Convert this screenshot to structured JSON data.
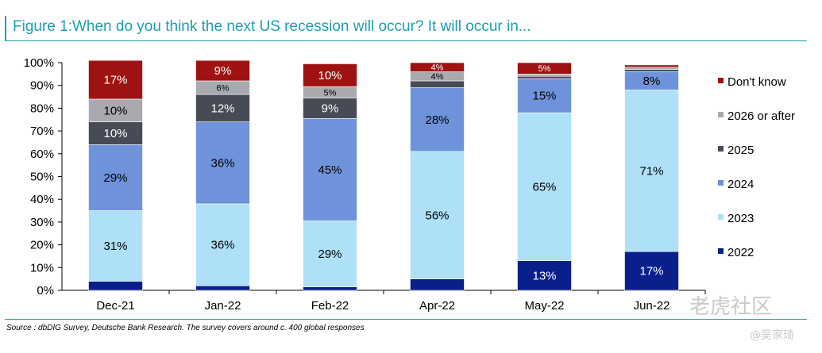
{
  "figure_title": "Figure 1:When do you think the next US recession will occur? It will occur in...",
  "source_note": "Source : dbDIG Survey, Deutsche Bank Research. The survey covers around c. 400 global responses",
  "watermark": {
    "main": "老虎社区",
    "sub": "@吴家琦"
  },
  "colors": {
    "2022": "#0a1e8c",
    "2023": "#aee0f7",
    "2024": "#6f93db",
    "2025": "#474b56",
    "2026 or after": "#a8aab0",
    "Don't know": "#9e1212",
    "accent": "#1a9fb0"
  },
  "chart_data": {
    "type": "bar",
    "stacked": true,
    "categories": [
      "Dec-21",
      "Jan-22",
      "Feb-22",
      "Apr-22",
      "May-22",
      "Jun-22"
    ],
    "y_tick_labels": [
      "0%",
      "10%",
      "20%",
      "30%",
      "40%",
      "50%",
      "60%",
      "70%",
      "80%",
      "90%",
      "100%"
    ],
    "ylim": [
      0,
      100
    ],
    "legend_position": "right",
    "series": [
      {
        "name": "2022",
        "values": [
          4,
          2,
          1.5,
          5,
          13,
          17
        ],
        "labels": [
          "",
          "",
          "",
          "",
          "13%",
          "17%"
        ]
      },
      {
        "name": "2023",
        "values": [
          31,
          36,
          29,
          56,
          65,
          71
        ],
        "labels": [
          "31%",
          "36%",
          "29%",
          "56%",
          "65%",
          "71%"
        ]
      },
      {
        "name": "2024",
        "values": [
          29,
          36,
          45,
          28,
          15,
          8
        ],
        "labels": [
          "29%",
          "36%",
          "45%",
          "28%",
          "15%",
          "8%"
        ]
      },
      {
        "name": "2025",
        "values": [
          10,
          12,
          9,
          3,
          1,
          1
        ],
        "labels": [
          "10%",
          "12%",
          "9%",
          "",
          "",
          ""
        ]
      },
      {
        "name": "2026 or after",
        "values": [
          10,
          6,
          5,
          4,
          1,
          1
        ],
        "labels": [
          "10%",
          "6%",
          "5%",
          "4%",
          "",
          ""
        ]
      },
      {
        "name": "Don't know",
        "values": [
          17,
          9,
          10,
          4,
          5,
          1
        ],
        "labels": [
          "17%",
          "9%",
          "10%",
          "4%",
          "5%",
          ""
        ]
      }
    ],
    "legend_order": [
      "Don't know",
      "2026 or after",
      "2025",
      "2024",
      "2023",
      "2022"
    ],
    "xlabel": "",
    "ylabel": ""
  }
}
